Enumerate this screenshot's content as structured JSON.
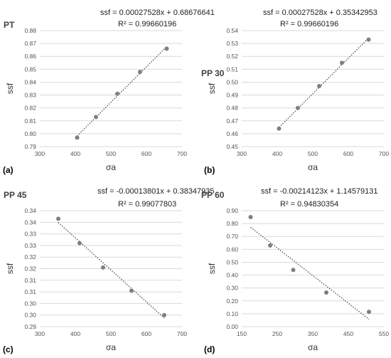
{
  "chart_data": [
    {
      "type": "scatter",
      "panel_label": "(a)",
      "title": "PT",
      "equation": "ssf = 0.00027528x + 0.68676641",
      "r2": "R² = 0.99660196",
      "xlabel": "σa",
      "ylabel": "ssf",
      "xlim": [
        300,
        700
      ],
      "ylim": [
        0.79,
        0.88
      ],
      "xticks": [
        "300",
        "400",
        "500",
        "600",
        "700"
      ],
      "yticks": [
        "0.79",
        "0.80",
        "0.81",
        "0.82",
        "0.83",
        "0.84",
        "0.85",
        "0.86",
        "0.87",
        "0.88"
      ],
      "grid": "horizontal",
      "points": [
        {
          "x": 405,
          "y": 0.797
        },
        {
          "x": 458,
          "y": 0.813
        },
        {
          "x": 518,
          "y": 0.831
        },
        {
          "x": 582,
          "y": 0.848
        },
        {
          "x": 657,
          "y": 0.866
        }
      ],
      "trend": {
        "slope": 0.00027528,
        "intercept": 0.68676641
      }
    },
    {
      "type": "scatter",
      "panel_label": "(b)",
      "title": "PP 30",
      "equation": "ssf = 0.00027528x + 0.35342953",
      "r2": "R² = 0.99660196",
      "xlabel": "σa",
      "ylabel": "ssf",
      "xlim": [
        300,
        700
      ],
      "ylim": [
        0.45,
        0.54
      ],
      "xticks": [
        "300",
        "400",
        "500",
        "600",
        "700"
      ],
      "yticks": [
        "0.45",
        "0.46",
        "0.47",
        "0.48",
        "0.49",
        "0.50",
        "0.51",
        "0.52",
        "0.53",
        "0.54"
      ],
      "grid": "horizontal",
      "points": [
        {
          "x": 405,
          "y": 0.464
        },
        {
          "x": 458,
          "y": 0.48
        },
        {
          "x": 518,
          "y": 0.497
        },
        {
          "x": 582,
          "y": 0.515
        },
        {
          "x": 657,
          "y": 0.533
        }
      ],
      "trend": {
        "slope": 0.00027528,
        "intercept": 0.35342953
      }
    },
    {
      "type": "scatter",
      "panel_label": "(c)",
      "title": "PP 45",
      "equation": "ssf = -0.00013801x + 0.38347935",
      "r2": "R² = 0.99077803",
      "xlabel": "σa",
      "ylabel": "ssf",
      "xlim": [
        300,
        700
      ],
      "ylim": [
        0.29,
        0.34
      ],
      "xticks": [
        "300",
        "400",
        "500",
        "600",
        "700"
      ],
      "yticks": [
        "0.29",
        "0.30",
        "0.30",
        "0.31",
        "0.31",
        "0.32",
        "0.32",
        "0.33",
        "0.33",
        "0.34",
        "0.34"
      ],
      "grid": "horizontal",
      "points": [
        {
          "x": 352,
          "y": 0.3365
        },
        {
          "x": 412,
          "y": 0.326
        },
        {
          "x": 478,
          "y": 0.3155
        },
        {
          "x": 558,
          "y": 0.3055
        },
        {
          "x": 650,
          "y": 0.295
        }
      ],
      "trend": {
        "slope": -0.00013801,
        "intercept": 0.38347935
      }
    },
    {
      "type": "scatter",
      "panel_label": "(d)",
      "title": "PP 60",
      "equation": "ssf = -0.00214123x + 1.14579131",
      "r2": "R² = 0.94830354",
      "xlabel": "σa",
      "ylabel": "ssf",
      "xlim": [
        150,
        550
      ],
      "ylim": [
        0.0,
        0.9
      ],
      "xticks": [
        "150",
        "250",
        "350",
        "450",
        "550"
      ],
      "yticks": [
        "0.00",
        "0.10",
        "0.20",
        "0.30",
        "0.40",
        "0.50",
        "0.60",
        "0.70",
        "0.80",
        "0.90"
      ],
      "grid": "horizontal",
      "points": [
        {
          "x": 175,
          "y": 0.85
        },
        {
          "x": 230,
          "y": 0.63
        },
        {
          "x": 295,
          "y": 0.44
        },
        {
          "x": 388,
          "y": 0.265
        },
        {
          "x": 508,
          "y": 0.115
        }
      ],
      "trend": {
        "slope": -0.00214123,
        "intercept": 1.14579131
      }
    }
  ]
}
